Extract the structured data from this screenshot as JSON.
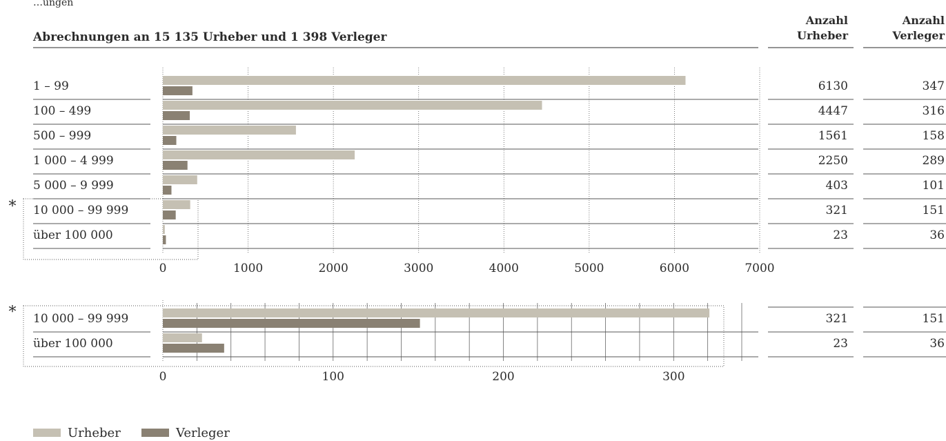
{
  "header": {
    "top_fragment": "…ungen",
    "title": "Abrechnungen an 15 135 Urheber und 1 398 Verleger",
    "col_urheber": [
      "Anzahl",
      "Urheber"
    ],
    "col_verleger": [
      "Anzahl",
      "Verleger"
    ]
  },
  "colors": {
    "urheber": "#c5c0b3",
    "verleger": "#8a8173",
    "rule": "#555555",
    "grid": "#555555"
  },
  "chart_data": [
    {
      "type": "bar",
      "orientation": "horizontal",
      "categories": [
        "1 – 99",
        "100 – 499",
        "500 – 999",
        "1 000 – 4 999",
        "5 000 – 9 999",
        "10 000 – 99 999",
        "über 100 000"
      ],
      "series": [
        {
          "name": "Urheber",
          "values": [
            6130,
            4447,
            1561,
            2250,
            403,
            321,
            23
          ]
        },
        {
          "name": "Verleger",
          "values": [
            347,
            316,
            158,
            289,
            101,
            151,
            36
          ]
        }
      ],
      "xlim": [
        0,
        7000
      ],
      "xticks": [
        0,
        1000,
        2000,
        3000,
        4000,
        5000,
        6000,
        7000
      ],
      "grid": "vertical dotted",
      "table_urheber": [
        "6130",
        "4447",
        "1561",
        "2250",
        "403",
        "321",
        "23"
      ],
      "table_verleger": [
        "347",
        "316",
        "158",
        "289",
        "101",
        "151",
        "36"
      ],
      "highlight_categories": [
        "10 000 – 99 999",
        "über 100 000"
      ],
      "highlight_marker": "*"
    },
    {
      "type": "bar",
      "orientation": "horizontal",
      "categories": [
        "10 000 – 99 999",
        "über 100 000"
      ],
      "series": [
        {
          "name": "Urheber",
          "values": [
            321,
            23
          ]
        },
        {
          "name": "Verleger",
          "values": [
            151,
            36
          ]
        }
      ],
      "xlim": [
        0,
        340
      ],
      "xticks": [
        0,
        100,
        200,
        300
      ],
      "minor_grid_step": 20,
      "table_urheber": [
        "321",
        "23"
      ],
      "table_verleger": [
        "151",
        "36"
      ],
      "highlight_marker": "*"
    }
  ],
  "legend": [
    {
      "label": "Urheber",
      "color": "#c5c0b3"
    },
    {
      "label": "Verleger",
      "color": "#8a8173"
    }
  ]
}
